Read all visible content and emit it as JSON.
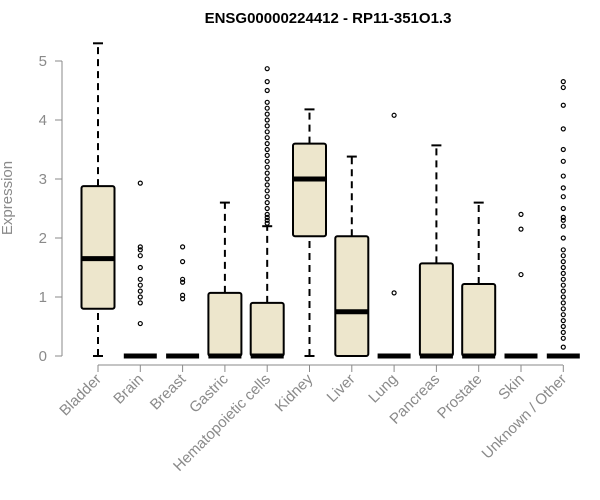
{
  "chart_data": {
    "type": "boxplot",
    "title": "ENSG00000224412 - RP11-351O1.3",
    "xlabel": "",
    "ylabel": "Expression",
    "ylim": [
      0,
      5.3
    ],
    "yticks": [
      0,
      1,
      2,
      3,
      4,
      5
    ],
    "box_color": "#ede6cc",
    "categories": [
      "Bladder",
      "Brain",
      "Breast",
      "Gastric",
      "Hematopoietic cells",
      "Kidney",
      "Liver",
      "Lung",
      "Pancreas",
      "Prostate",
      "Skin",
      "Unknown / Other"
    ],
    "boxes": [
      {
        "label": "Bladder",
        "min": 0,
        "q1": 0.8,
        "median": 1.65,
        "q3": 2.88,
        "max": 5.3,
        "outliers": []
      },
      {
        "label": "Brain",
        "min": 0,
        "q1": 0,
        "median": 0,
        "q3": 0,
        "max": 0,
        "outliers": [
          0.55,
          0.9,
          1.0,
          1.1,
          1.2,
          1.3,
          1.5,
          1.7,
          1.8,
          1.85,
          2.93
        ]
      },
      {
        "label": "Breast",
        "min": 0,
        "q1": 0,
        "median": 0,
        "q3": 0,
        "max": 0,
        "outliers": [
          0.97,
          1.03,
          1.25,
          1.3,
          1.6,
          1.85
        ]
      },
      {
        "label": "Gastric",
        "min": 0,
        "q1": 0,
        "median": 0,
        "q3": 1.07,
        "max": 2.6,
        "outliers": []
      },
      {
        "label": "Hematopoietic cells",
        "min": 0,
        "q1": 0,
        "median": 0,
        "q3": 0.9,
        "max": 2.2,
        "outliers": [
          2.25,
          2.3,
          2.35,
          2.4,
          2.5,
          2.6,
          2.7,
          2.8,
          2.9,
          3.0,
          3.1,
          3.2,
          3.3,
          3.4,
          3.5,
          3.6,
          3.7,
          3.8,
          3.9,
          4.0,
          4.1,
          4.2,
          4.3,
          4.5,
          4.65,
          4.87
        ]
      },
      {
        "label": "Kidney",
        "min": 0,
        "q1": 2.03,
        "median": 3.0,
        "q3": 3.6,
        "max": 4.18,
        "outliers": []
      },
      {
        "label": "Liver",
        "min": 0,
        "q1": 0,
        "median": 0.75,
        "q3": 2.03,
        "max": 3.38,
        "outliers": []
      },
      {
        "label": "Lung",
        "min": 0,
        "q1": 0,
        "median": 0,
        "q3": 0,
        "max": 0,
        "outliers": [
          1.07,
          4.08
        ]
      },
      {
        "label": "Pancreas",
        "min": 0,
        "q1": 0,
        "median": 0,
        "q3": 1.57,
        "max": 3.57,
        "outliers": []
      },
      {
        "label": "Prostate",
        "min": 0,
        "q1": 0,
        "median": 0,
        "q3": 1.22,
        "max": 2.6,
        "outliers": []
      },
      {
        "label": "Skin",
        "min": 0,
        "q1": 0,
        "median": 0,
        "q3": 0,
        "max": 0,
        "outliers": [
          1.38,
          2.15,
          2.4
        ]
      },
      {
        "label": "Unknown / Other",
        "min": 0,
        "q1": 0,
        "median": 0,
        "q3": 0,
        "max": 0,
        "outliers": [
          0.15,
          0.3,
          0.4,
          0.5,
          0.6,
          0.7,
          0.8,
          0.9,
          1.0,
          1.1,
          1.2,
          1.3,
          1.4,
          1.5,
          1.6,
          1.7,
          1.8,
          2.0,
          2.2,
          2.3,
          2.35,
          2.5,
          2.7,
          2.85,
          3.05,
          3.3,
          3.5,
          3.85,
          4.25,
          4.55,
          4.65
        ]
      }
    ]
  }
}
